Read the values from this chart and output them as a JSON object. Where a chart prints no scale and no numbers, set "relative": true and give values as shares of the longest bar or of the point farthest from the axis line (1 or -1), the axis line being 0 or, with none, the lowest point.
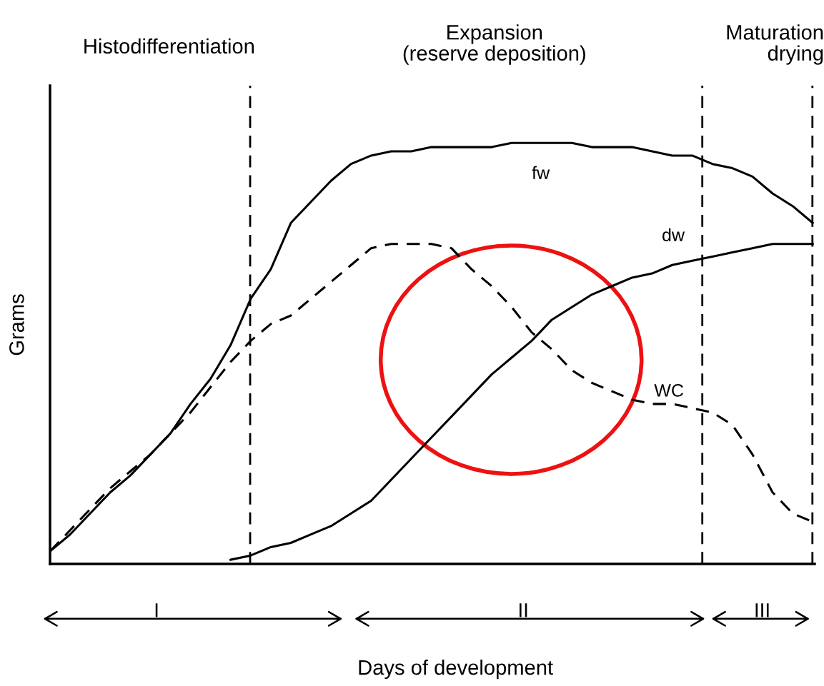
{
  "chart_data": {
    "type": "line",
    "relative": true,
    "xlabel": "Days of development",
    "ylabel": "Grams",
    "categories": [
      null,
      null,
      null,
      null,
      null,
      null,
      null,
      null,
      null,
      null,
      null,
      null,
      null,
      null,
      null,
      null,
      null,
      null,
      null,
      null,
      null,
      null,
      null,
      null,
      null,
      null,
      null,
      null,
      null,
      null,
      null,
      null,
      null,
      null,
      null,
      null,
      null,
      null,
      null
    ],
    "series": [
      {
        "name": "fw",
        "color": "#000000",
        "line_style": "solid",
        "values": [
          0.03,
          0.07,
          0.12,
          0.17,
          0.21,
          0.26,
          0.31,
          0.38,
          0.44,
          0.52,
          0.63,
          0.7,
          0.81,
          0.86,
          0.91,
          0.95,
          0.97,
          0.98,
          0.98,
          0.99,
          0.99,
          0.99,
          0.99,
          1.0,
          1.0,
          1.0,
          1.0,
          0.99,
          0.99,
          0.99,
          0.98,
          0.97,
          0.97,
          0.95,
          0.94,
          0.92,
          0.88,
          0.85,
          0.81
        ]
      },
      {
        "name": "dw",
        "color": "#000000",
        "line_style": "solid",
        "values": [
          null,
          null,
          null,
          null,
          null,
          null,
          null,
          null,
          null,
          0.01,
          0.02,
          0.04,
          0.05,
          0.07,
          0.09,
          0.12,
          0.15,
          0.2,
          0.25,
          0.3,
          0.35,
          0.4,
          0.45,
          0.49,
          0.53,
          0.58,
          0.61,
          0.64,
          0.66,
          0.68,
          0.69,
          0.71,
          0.72,
          0.73,
          0.74,
          0.75,
          0.76,
          0.76,
          0.76
        ]
      },
      {
        "name": "WC",
        "color": "#000000",
        "line_style": "dashed",
        "values": [
          0.03,
          0.08,
          0.13,
          0.18,
          0.22,
          0.26,
          0.31,
          0.36,
          0.42,
          0.48,
          0.53,
          0.57,
          0.59,
          0.63,
          0.67,
          0.71,
          0.75,
          0.76,
          0.76,
          0.76,
          0.75,
          0.7,
          0.66,
          0.61,
          0.55,
          0.51,
          0.46,
          0.43,
          0.41,
          0.39,
          0.38,
          0.38,
          0.37,
          0.36,
          0.33,
          0.26,
          0.17,
          0.12,
          0.1
        ]
      }
    ],
    "annotations": [
      "Histodifferentiation",
      "Expansion\n(reserve deposition)",
      "Maturation\ndrying",
      "I",
      "II",
      "III"
    ],
    "legend": false,
    "marker": "none"
  }
}
